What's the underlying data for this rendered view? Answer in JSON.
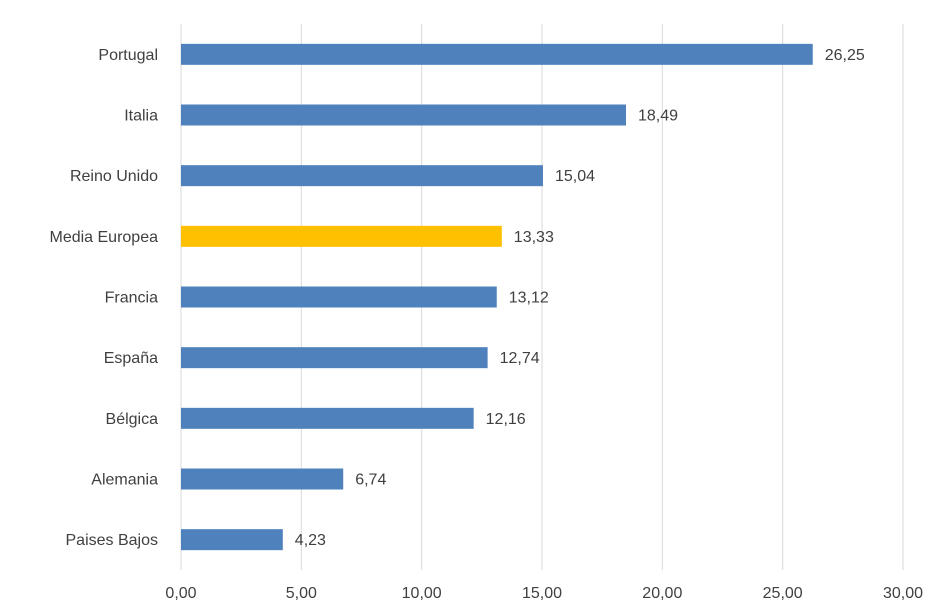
{
  "chart_data": {
    "type": "bar",
    "orientation": "horizontal",
    "title": "",
    "xlabel": "",
    "ylabel": "",
    "xlim": [
      0,
      30
    ],
    "x_ticks": [
      "0,00",
      "5,00",
      "10,00",
      "15,00",
      "20,00",
      "25,00",
      "30,00"
    ],
    "x_tick_values": [
      0,
      5,
      10,
      15,
      20,
      25,
      30
    ],
    "grid": true,
    "legend": "none",
    "categories": [
      "Portugal",
      "Italia",
      "Reino Unido",
      "Media Europea",
      "Francia",
      "España",
      "Bélgica",
      "Alemania",
      "Paises Bajos"
    ],
    "values": [
      26.25,
      18.49,
      15.04,
      13.33,
      13.12,
      12.74,
      12.16,
      6.74,
      4.23
    ],
    "value_labels": [
      "26,25",
      "18,49",
      "15,04",
      "13,33",
      "13,12",
      "12,74",
      "12,16",
      "6,74",
      "4,23"
    ],
    "colors": {
      "default": "#4f81bd",
      "highlight": "#ffc000"
    },
    "highlight_category": "Media Europea"
  }
}
